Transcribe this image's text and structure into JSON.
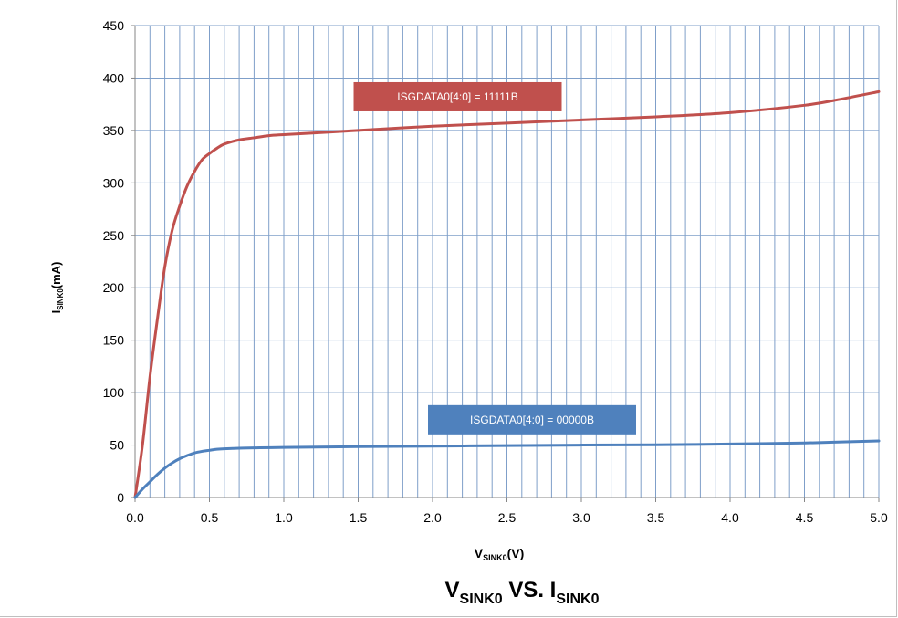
{
  "chart_data": {
    "type": "line",
    "title": {
      "main": "V",
      "sub": "SINK0",
      "mid": " VS. I",
      "sub2": "SINK0"
    },
    "xlabel": {
      "main": "V",
      "sub": "SINK0",
      "unit": "(V)"
    },
    "ylabel": {
      "main": "I",
      "sub": "SINK0",
      "unit": "(mA)"
    },
    "xlim": [
      0,
      5
    ],
    "ylim": [
      0,
      450
    ],
    "x_ticks": [
      "0.0",
      "0.5",
      "1.0",
      "1.5",
      "2.0",
      "2.5",
      "3.0",
      "3.5",
      "4.0",
      "4.5",
      "5.0"
    ],
    "y_ticks": [
      "0",
      "50",
      "100",
      "150",
      "200",
      "250",
      "300",
      "350",
      "400",
      "450"
    ],
    "x_minor_step": 0.1,
    "grid": true,
    "legend": "none",
    "series": [
      {
        "name": "ISGDATA0[4:0] = 11111B",
        "color": "#c0504d",
        "x": [
          0,
          0.05,
          0.1,
          0.15,
          0.2,
          0.25,
          0.3,
          0.35,
          0.4,
          0.45,
          0.5,
          0.55,
          0.6,
          0.7,
          0.8,
          0.9,
          1.0,
          1.25,
          1.5,
          2.0,
          2.5,
          3.0,
          3.5,
          4.0,
          4.5,
          4.75,
          5.0
        ],
        "y": [
          0,
          50,
          115,
          170,
          220,
          255,
          278,
          297,
          311,
          322,
          328,
          333,
          337,
          341,
          343,
          345,
          346,
          348,
          350,
          354,
          357,
          360,
          363,
          367,
          374,
          380,
          387
        ]
      },
      {
        "name": "ISGDATA0[4:0] = 00000B",
        "color": "#4f81bd",
        "x": [
          0,
          0.05,
          0.1,
          0.15,
          0.2,
          0.25,
          0.3,
          0.35,
          0.4,
          0.45,
          0.5,
          0.55,
          0.6,
          0.7,
          0.8,
          1.0,
          1.5,
          2.0,
          2.5,
          3.0,
          3.5,
          4.0,
          4.5,
          5.0
        ],
        "y": [
          0,
          8,
          15,
          22,
          28,
          33,
          37,
          40,
          42.5,
          44,
          45,
          46,
          46.5,
          47,
          47.3,
          47.8,
          48.5,
          49,
          49.5,
          50,
          50.3,
          51,
          52,
          54
        ]
      }
    ],
    "annotations": [
      {
        "text": "ISGDATA0[4:0] = 11111B",
        "color": "#c0504d",
        "x": 1.5,
        "y": 383
      },
      {
        "text": "ISGDATA0[4:0] = 00000B",
        "color": "#4f81bd",
        "x": 2.0,
        "y": 75
      }
    ]
  }
}
